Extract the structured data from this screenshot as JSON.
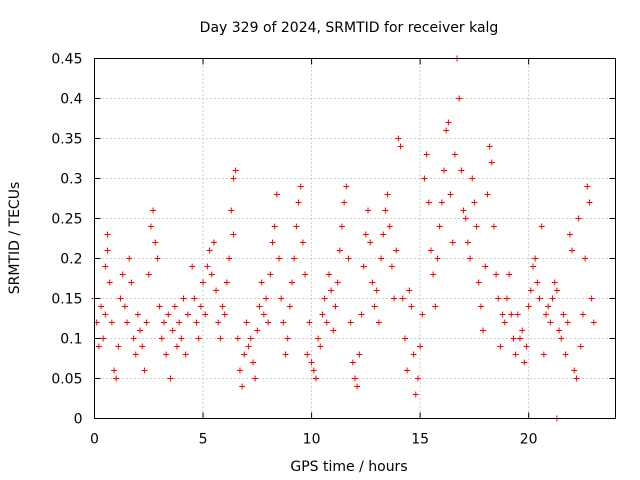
{
  "chart_data": {
    "type": "scatter",
    "title": "Day 329 of 2024, SRMTID for receiver kalg",
    "xlabel": "GPS time / hours",
    "ylabel": "SRMTID / TECUs",
    "xlim": [
      0,
      24.0
    ],
    "ylim": [
      0,
      0.45
    ],
    "x_ticks": [
      0,
      5,
      10,
      15,
      20
    ],
    "x_tick_labels": [
      "0",
      "5",
      "10",
      "15",
      "20"
    ],
    "y_ticks": [
      0,
      0.05,
      0.1,
      0.15,
      0.2,
      0.25,
      0.3,
      0.35,
      0.4,
      0.45
    ],
    "y_tick_labels": [
      "0",
      "0.05",
      "0.1",
      "0.15",
      "0.2",
      "0.25",
      "0.3",
      "0.35",
      "0.4",
      "0.45"
    ],
    "grid": true,
    "marker": "+",
    "marker_color": "#ff0000",
    "series": [
      {
        "name": "SRMTID",
        "points": [
          [
            0.0,
            0.15
          ],
          [
            0.1,
            0.12
          ],
          [
            0.2,
            0.09
          ],
          [
            0.3,
            0.14
          ],
          [
            0.4,
            0.1
          ],
          [
            0.5,
            0.13
          ],
          [
            0.5,
            0.19
          ],
          [
            0.6,
            0.21
          ],
          [
            0.6,
            0.23
          ],
          [
            0.7,
            0.17
          ],
          [
            0.8,
            0.12
          ],
          [
            0.9,
            0.06
          ],
          [
            1.0,
            0.05
          ],
          [
            1.1,
            0.09
          ],
          [
            1.2,
            0.15
          ],
          [
            1.3,
            0.18
          ],
          [
            1.4,
            0.14
          ],
          [
            1.5,
            0.12
          ],
          [
            1.6,
            0.2
          ],
          [
            1.7,
            0.17
          ],
          [
            1.8,
            0.1
          ],
          [
            1.9,
            0.08
          ],
          [
            2.0,
            0.13
          ],
          [
            2.1,
            0.11
          ],
          [
            2.2,
            0.09
          ],
          [
            2.3,
            0.06
          ],
          [
            2.4,
            0.12
          ],
          [
            2.5,
            0.18
          ],
          [
            2.6,
            0.24
          ],
          [
            2.7,
            0.26
          ],
          [
            2.8,
            0.22
          ],
          [
            2.9,
            0.2
          ],
          [
            3.0,
            0.14
          ],
          [
            3.1,
            0.1
          ],
          [
            3.2,
            0.12
          ],
          [
            3.3,
            0.08
          ],
          [
            3.4,
            0.13
          ],
          [
            3.5,
            0.05
          ],
          [
            3.6,
            0.11
          ],
          [
            3.7,
            0.14
          ],
          [
            3.8,
            0.09
          ],
          [
            3.9,
            0.12
          ],
          [
            4.0,
            0.1
          ],
          [
            4.1,
            0.15
          ],
          [
            4.2,
            0.08
          ],
          [
            4.3,
            0.13
          ],
          [
            4.5,
            0.19
          ],
          [
            4.6,
            0.15
          ],
          [
            4.7,
            0.12
          ],
          [
            4.8,
            0.1
          ],
          [
            4.9,
            0.14
          ],
          [
            5.0,
            0.17
          ],
          [
            5.1,
            0.13
          ],
          [
            5.2,
            0.19
          ],
          [
            5.3,
            0.21
          ],
          [
            5.4,
            0.18
          ],
          [
            5.5,
            0.22
          ],
          [
            5.6,
            0.16
          ],
          [
            5.7,
            0.12
          ],
          [
            5.8,
            0.1
          ],
          [
            5.9,
            0.14
          ],
          [
            6.0,
            0.13
          ],
          [
            6.1,
            0.17
          ],
          [
            6.2,
            0.2
          ],
          [
            6.3,
            0.26
          ],
          [
            6.4,
            0.3
          ],
          [
            6.5,
            0.31
          ],
          [
            6.4,
            0.23
          ],
          [
            6.6,
            0.1
          ],
          [
            6.7,
            0.06
          ],
          [
            6.8,
            0.04
          ],
          [
            6.9,
            0.08
          ],
          [
            7.0,
            0.12
          ],
          [
            7.1,
            0.09
          ],
          [
            7.2,
            0.1
          ],
          [
            7.3,
            0.07
          ],
          [
            7.4,
            0.05
          ],
          [
            7.5,
            0.11
          ],
          [
            7.6,
            0.14
          ],
          [
            7.7,
            0.17
          ],
          [
            7.8,
            0.13
          ],
          [
            7.9,
            0.15
          ],
          [
            8.0,
            0.12
          ],
          [
            8.1,
            0.18
          ],
          [
            8.2,
            0.22
          ],
          [
            8.3,
            0.24
          ],
          [
            8.4,
            0.28
          ],
          [
            8.5,
            0.2
          ],
          [
            8.6,
            0.15
          ],
          [
            8.7,
            0.12
          ],
          [
            8.8,
            0.08
          ],
          [
            8.9,
            0.1
          ],
          [
            9.0,
            0.14
          ],
          [
            9.1,
            0.17
          ],
          [
            9.2,
            0.2
          ],
          [
            9.3,
            0.24
          ],
          [
            9.4,
            0.27
          ],
          [
            9.5,
            0.29
          ],
          [
            9.6,
            0.22
          ],
          [
            9.7,
            0.18
          ],
          [
            9.8,
            0.08
          ],
          [
            9.9,
            0.12
          ],
          [
            10.0,
            0.07
          ],
          [
            10.1,
            0.06
          ],
          [
            10.2,
            0.05
          ],
          [
            10.3,
            0.1
          ],
          [
            10.4,
            0.09
          ],
          [
            10.5,
            0.13
          ],
          [
            10.6,
            0.15
          ],
          [
            10.7,
            0.12
          ],
          [
            10.8,
            0.18
          ],
          [
            10.9,
            0.16
          ],
          [
            11.0,
            0.11
          ],
          [
            11.1,
            0.14
          ],
          [
            11.2,
            0.17
          ],
          [
            11.3,
            0.21
          ],
          [
            11.4,
            0.24
          ],
          [
            11.5,
            0.27
          ],
          [
            11.6,
            0.29
          ],
          [
            11.7,
            0.2
          ],
          [
            11.8,
            0.12
          ],
          [
            11.9,
            0.07
          ],
          [
            12.0,
            0.05
          ],
          [
            12.1,
            0.04
          ],
          [
            12.2,
            0.08
          ],
          [
            12.3,
            0.13
          ],
          [
            12.4,
            0.19
          ],
          [
            12.5,
            0.23
          ],
          [
            12.6,
            0.26
          ],
          [
            12.7,
            0.22
          ],
          [
            12.8,
            0.17
          ],
          [
            12.9,
            0.14
          ],
          [
            13.0,
            0.16
          ],
          [
            13.1,
            0.12
          ],
          [
            13.2,
            0.2
          ],
          [
            13.3,
            0.23
          ],
          [
            13.4,
            0.26
          ],
          [
            13.5,
            0.28
          ],
          [
            13.6,
            0.24
          ],
          [
            13.7,
            0.19
          ],
          [
            13.8,
            0.15
          ],
          [
            13.9,
            0.21
          ],
          [
            14.0,
            0.35
          ],
          [
            14.1,
            0.34
          ],
          [
            14.2,
            0.15
          ],
          [
            14.3,
            0.1
          ],
          [
            14.4,
            0.06
          ],
          [
            14.5,
            0.16
          ],
          [
            14.6,
            0.14
          ],
          [
            14.7,
            0.08
          ],
          [
            14.8,
            0.03
          ],
          [
            14.9,
            0.05
          ],
          [
            15.0,
            0.09
          ],
          [
            15.1,
            0.13
          ],
          [
            15.2,
            0.3
          ],
          [
            15.3,
            0.33
          ],
          [
            15.4,
            0.27
          ],
          [
            15.5,
            0.21
          ],
          [
            15.6,
            0.18
          ],
          [
            15.7,
            0.14
          ],
          [
            15.8,
            0.2
          ],
          [
            15.9,
            0.24
          ],
          [
            16.0,
            0.27
          ],
          [
            16.1,
            0.31
          ],
          [
            16.2,
            0.36
          ],
          [
            16.3,
            0.37
          ],
          [
            16.4,
            0.28
          ],
          [
            16.5,
            0.22
          ],
          [
            16.6,
            0.33
          ],
          [
            16.7,
            0.45
          ],
          [
            16.8,
            0.4
          ],
          [
            16.9,
            0.31
          ],
          [
            17.0,
            0.26
          ],
          [
            17.1,
            0.25
          ],
          [
            17.2,
            0.22
          ],
          [
            17.3,
            0.2
          ],
          [
            17.4,
            0.3
          ],
          [
            17.5,
            0.27
          ],
          [
            17.6,
            0.24
          ],
          [
            17.7,
            0.17
          ],
          [
            17.8,
            0.14
          ],
          [
            17.9,
            0.11
          ],
          [
            18.0,
            0.19
          ],
          [
            18.1,
            0.28
          ],
          [
            18.2,
            0.34
          ],
          [
            18.3,
            0.32
          ],
          [
            18.4,
            0.24
          ],
          [
            18.5,
            0.18
          ],
          [
            18.6,
            0.15
          ],
          [
            18.7,
            0.09
          ],
          [
            18.8,
            0.13
          ],
          [
            18.9,
            0.12
          ],
          [
            19.0,
            0.15
          ],
          [
            19.1,
            0.18
          ],
          [
            19.2,
            0.13
          ],
          [
            19.3,
            0.1
          ],
          [
            19.4,
            0.08
          ],
          [
            19.5,
            0.13
          ],
          [
            19.6,
            0.1
          ],
          [
            19.7,
            0.11
          ],
          [
            19.8,
            0.07
          ],
          [
            19.9,
            0.09
          ],
          [
            20.0,
            0.14
          ],
          [
            20.1,
            0.16
          ],
          [
            20.2,
            0.19
          ],
          [
            20.3,
            0.2
          ],
          [
            20.4,
            0.17
          ],
          [
            20.5,
            0.15
          ],
          [
            20.6,
            0.24
          ],
          [
            20.7,
            0.08
          ],
          [
            20.8,
            0.13
          ],
          [
            20.9,
            0.14
          ],
          [
            21.0,
            0.12
          ],
          [
            21.1,
            0.15
          ],
          [
            21.2,
            0.17
          ],
          [
            21.3,
            0.16
          ],
          [
            21.4,
            0.11
          ],
          [
            21.5,
            0.1
          ],
          [
            21.6,
            0.13
          ],
          [
            21.7,
            0.08
          ],
          [
            21.8,
            0.12
          ],
          [
            21.9,
            0.23
          ],
          [
            22.0,
            0.21
          ],
          [
            22.1,
            0.06
          ],
          [
            22.2,
            0.05
          ],
          [
            22.3,
            0.25
          ],
          [
            22.4,
            0.09
          ],
          [
            22.5,
            0.13
          ],
          [
            22.6,
            0.2
          ],
          [
            22.7,
            0.29
          ],
          [
            22.8,
            0.27
          ],
          [
            22.9,
            0.15
          ],
          [
            23.0,
            0.12
          ],
          [
            21.3,
            0.0
          ]
        ]
      }
    ]
  }
}
